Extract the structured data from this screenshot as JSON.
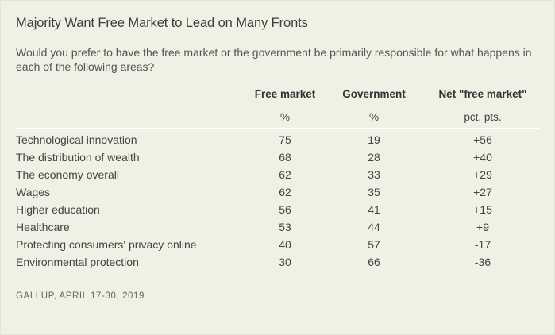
{
  "title": "Majority Want Free Market to Lead on Many Fronts",
  "subtitle": "Would you prefer to have the free market or the government be primarily responsible for what happens in each of the following areas?",
  "columns": [
    {
      "header": "Free market",
      "unit": "%"
    },
    {
      "header": "Government",
      "unit": "%"
    },
    {
      "header": "Net \"free market\"",
      "unit": "pct. pts."
    }
  ],
  "rows": [
    {
      "area": "Technological innovation",
      "free_market": "75",
      "government": "19",
      "net": "+56"
    },
    {
      "area": "The distribution of wealth",
      "free_market": "68",
      "government": "28",
      "net": "+40"
    },
    {
      "area": "The economy overall",
      "free_market": "62",
      "government": "33",
      "net": "+29"
    },
    {
      "area": "Wages",
      "free_market": "62",
      "government": "35",
      "net": "+27"
    },
    {
      "area": "Higher education",
      "free_market": "56",
      "government": "41",
      "net": "+15"
    },
    {
      "area": "Healthcare",
      "free_market": "53",
      "government": "44",
      "net": "+9"
    },
    {
      "area": "Protecting consumers' privacy online",
      "free_market": "40",
      "government": "57",
      "net": "-17"
    },
    {
      "area": "Environmental protection",
      "free_market": "30",
      "government": "66",
      "net": "-36"
    }
  ],
  "source": "GALLUP, APRIL 17-30, 2019",
  "colors": {
    "background": "#eef2e4",
    "rule": "#ffffff",
    "text": "#444444"
  }
}
